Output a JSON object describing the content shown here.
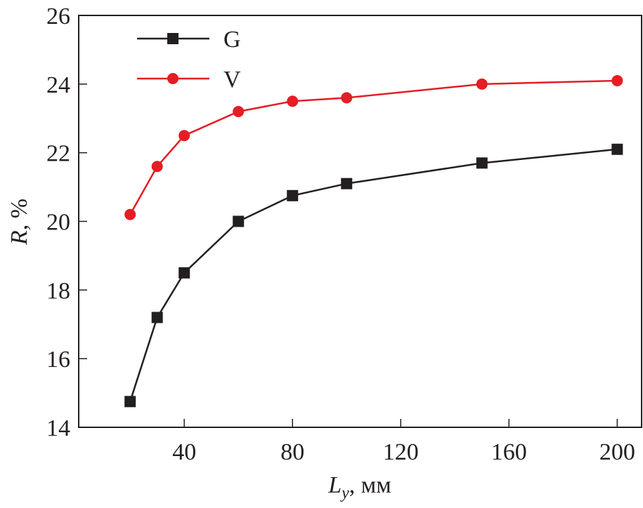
{
  "chart_data": {
    "type": "line",
    "title": "",
    "xlabel": "L",
    "xlabel_sub": "y",
    "xlabel_unit": ", мм",
    "ylabel": "R",
    "ylabel_unit": ", %",
    "xlim": [
      1,
      209
    ],
    "ylim": [
      14,
      26
    ],
    "xticks": [
      40,
      80,
      120,
      160,
      200
    ],
    "yticks": [
      14,
      16,
      18,
      20,
      22,
      24,
      26
    ],
    "grid": false,
    "legend_position": "top-left",
    "x": [
      20,
      30,
      40,
      60,
      80,
      100,
      150,
      200
    ],
    "series": [
      {
        "name": "G",
        "color": "#231f20",
        "marker": "square",
        "values": [
          14.75,
          17.2,
          18.5,
          20.0,
          20.75,
          21.1,
          21.7,
          22.1
        ]
      },
      {
        "name": "V",
        "color": "#e31e24",
        "marker": "circle",
        "values": [
          20.2,
          21.6,
          22.5,
          23.2,
          23.5,
          23.6,
          24.0,
          24.1
        ]
      }
    ]
  }
}
